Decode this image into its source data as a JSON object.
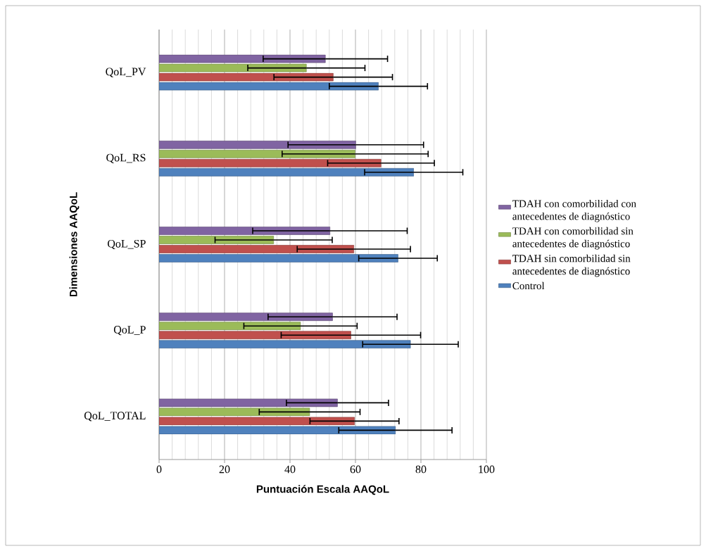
{
  "chart_data": {
    "type": "bar",
    "orientation": "horizontal",
    "xlabel": "Puntuación Escala AAQoL",
    "ylabel": "Dimensiones  AAQoL",
    "categories": [
      "QoL_PV",
      "QoL_RS",
      "QoL_SP",
      "QoL_P",
      "QoL_TOTAL"
    ],
    "series": [
      {
        "name": "Control",
        "color": "#4f81bd",
        "values": [
          67.0,
          77.8,
          73.0,
          76.8,
          72.2
        ],
        "errors": [
          15.0,
          15.0,
          12.0,
          14.6,
          17.3
        ]
      },
      {
        "name": "TDAH sin comorbilidad sin antecedentes de diagnóstico",
        "color": "#c0504d",
        "values": [
          53.2,
          67.8,
          59.5,
          58.6,
          59.7
        ],
        "errors": [
          18.1,
          16.3,
          17.3,
          21.3,
          13.6
        ]
      },
      {
        "name": "TDAH con comorbilidad sin antecedentes de diagnóstico",
        "color": "#9bbb59",
        "values": [
          45.0,
          59.9,
          35.0,
          43.2,
          46.0
        ],
        "errors": [
          17.9,
          22.3,
          17.9,
          17.3,
          15.4
        ]
      },
      {
        "name": "TDAH con comorbilidad con antecedentes de diagnóstico",
        "color": "#8064a2",
        "values": [
          50.8,
          60.1,
          52.2,
          53.0,
          54.5
        ],
        "errors": [
          19.0,
          20.7,
          23.6,
          19.7,
          15.6
        ]
      }
    ],
    "xlim": [
      0,
      100
    ],
    "xticks": [
      0,
      20,
      40,
      60,
      80,
      100
    ],
    "grid": "x",
    "legend": "right"
  }
}
